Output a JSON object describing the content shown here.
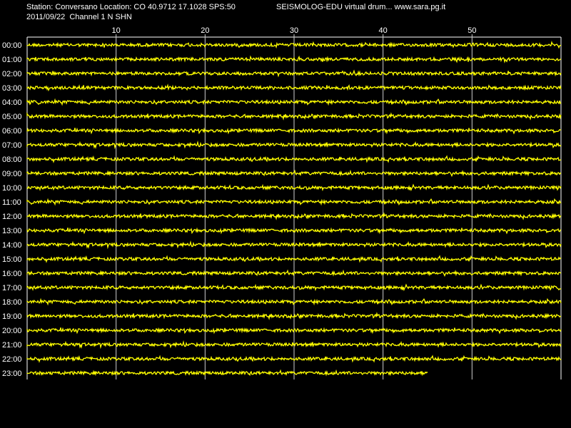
{
  "header": {
    "station_line": "Station: Conversano Location: CO 40.9712 17.1028 SPS:50",
    "app_line": "SEISMOLOG-EDU virtual drum... www.sara.pg.it",
    "date_line": "2011/09/22  Channel 1 N SHN"
  },
  "colors": {
    "trace": "#ffff00",
    "background": "#000000",
    "grid": "#ffffff",
    "text": "#ffffff"
  },
  "chart_data": {
    "type": "line",
    "title": "",
    "xlabel": "",
    "ylabel": "",
    "x_ticks": [
      "10",
      "20",
      "30",
      "40",
      "50"
    ],
    "xlim": [
      0,
      60
    ],
    "rows": [
      "00:00",
      "01:00",
      "02:00",
      "03:00",
      "04:00",
      "05:00",
      "06:00",
      "07:00",
      "08:00",
      "09:00",
      "10:00",
      "11:00",
      "12:00",
      "13:00",
      "14:00",
      "15:00",
      "16:00",
      "17:00",
      "18:00",
      "19:00",
      "20:00",
      "21:00",
      "22:00",
      "23:00"
    ],
    "row_end_minutes": [
      60,
      60,
      60,
      60,
      60,
      60,
      60,
      60,
      60,
      60,
      60,
      60,
      60,
      60,
      60,
      60,
      60,
      60,
      60,
      60,
      60,
      60,
      60,
      45
    ],
    "grid": true
  }
}
